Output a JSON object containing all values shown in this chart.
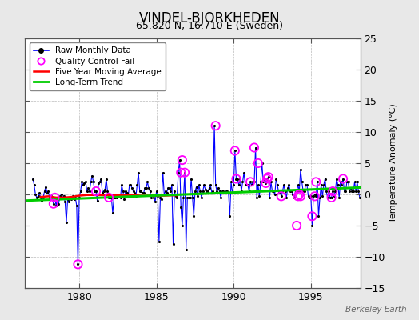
{
  "title": "VINDEL-BJORKHEDEN",
  "subtitle": "65.820 N, 16.710 E (Sweden)",
  "ylabel": "Temperature Anomaly (°C)",
  "credit": "Berkeley Earth",
  "xlim": [
    1976.5,
    1998.2
  ],
  "ylim": [
    -15,
    25
  ],
  "yticks": [
    -15,
    -10,
    -5,
    0,
    5,
    10,
    15,
    20,
    25
  ],
  "xticks": [
    1980,
    1985,
    1990,
    1995
  ],
  "bg_color": "#e8e8e8",
  "plot_bg_color": "#ffffff",
  "raw_line_color": "#0000ff",
  "raw_marker_color": "#000000",
  "qc_color": "#ff00ff",
  "moving_avg_color": "#ff0000",
  "trend_color": "#00cc00",
  "raw_data_x": [
    1977.0,
    1977.083,
    1977.167,
    1977.25,
    1977.333,
    1977.417,
    1977.5,
    1977.583,
    1977.667,
    1977.75,
    1977.833,
    1977.917,
    1978.0,
    1978.083,
    1978.167,
    1978.25,
    1978.333,
    1978.417,
    1978.5,
    1978.583,
    1978.667,
    1978.75,
    1978.833,
    1978.917,
    1979.0,
    1979.083,
    1979.167,
    1979.25,
    1979.333,
    1979.417,
    1979.5,
    1979.583,
    1979.667,
    1979.75,
    1979.833,
    1979.917,
    1980.0,
    1980.083,
    1980.167,
    1980.25,
    1980.333,
    1980.417,
    1980.5,
    1980.583,
    1980.667,
    1980.75,
    1980.833,
    1980.917,
    1981.0,
    1981.083,
    1981.167,
    1981.25,
    1981.333,
    1981.417,
    1981.5,
    1981.583,
    1981.667,
    1981.75,
    1981.833,
    1981.917,
    1982.0,
    1982.083,
    1982.167,
    1982.25,
    1982.333,
    1982.417,
    1982.5,
    1982.583,
    1982.667,
    1982.75,
    1982.833,
    1982.917,
    1983.0,
    1983.083,
    1983.167,
    1983.25,
    1983.333,
    1983.417,
    1983.5,
    1983.583,
    1983.667,
    1983.75,
    1983.833,
    1983.917,
    1984.0,
    1984.083,
    1984.167,
    1984.25,
    1984.333,
    1984.417,
    1984.5,
    1984.583,
    1984.667,
    1984.75,
    1984.833,
    1984.917,
    1985.0,
    1985.083,
    1985.167,
    1985.25,
    1985.333,
    1985.417,
    1985.5,
    1985.583,
    1985.667,
    1985.75,
    1985.833,
    1985.917,
    1986.0,
    1986.083,
    1986.167,
    1986.25,
    1986.333,
    1986.417,
    1986.5,
    1986.583,
    1986.667,
    1986.75,
    1986.833,
    1986.917,
    1987.0,
    1987.083,
    1987.167,
    1987.25,
    1987.333,
    1987.417,
    1987.5,
    1987.583,
    1987.667,
    1987.75,
    1987.833,
    1987.917,
    1988.0,
    1988.083,
    1988.167,
    1988.25,
    1988.333,
    1988.417,
    1988.5,
    1988.583,
    1988.667,
    1988.75,
    1988.833,
    1988.917,
    1989.0,
    1989.083,
    1989.167,
    1989.25,
    1989.333,
    1989.417,
    1989.5,
    1989.583,
    1989.667,
    1989.75,
    1989.833,
    1989.917,
    1990.0,
    1990.083,
    1990.167,
    1990.25,
    1990.333,
    1990.417,
    1990.5,
    1990.583,
    1990.667,
    1990.75,
    1990.833,
    1990.917,
    1991.0,
    1991.083,
    1991.167,
    1991.25,
    1991.333,
    1991.417,
    1991.5,
    1991.583,
    1991.667,
    1991.75,
    1991.833,
    1991.917,
    1992.0,
    1992.083,
    1992.167,
    1992.25,
    1992.333,
    1992.417,
    1992.5,
    1992.583,
    1992.667,
    1992.75,
    1992.833,
    1992.917,
    1993.0,
    1993.083,
    1993.167,
    1993.25,
    1993.333,
    1993.417,
    1993.5,
    1993.583,
    1993.667,
    1993.75,
    1993.833,
    1993.917,
    1994.0,
    1994.083,
    1994.167,
    1994.25,
    1994.333,
    1994.417,
    1994.5,
    1994.583,
    1994.667,
    1994.75,
    1994.833,
    1994.917,
    1995.0,
    1995.083,
    1995.167,
    1995.25,
    1995.333,
    1995.417,
    1995.5,
    1995.583,
    1995.667,
    1995.75,
    1995.833,
    1995.917,
    1996.0,
    1996.083,
    1996.167,
    1996.25,
    1996.333,
    1996.417,
    1996.5,
    1996.583,
    1996.667,
    1996.75,
    1996.833,
    1996.917,
    1997.0,
    1997.083,
    1997.167,
    1997.25,
    1997.333,
    1997.417,
    1997.5,
    1997.583,
    1997.667,
    1997.75,
    1997.833,
    1997.917,
    1998.0,
    1998.083,
    1998.167
  ],
  "raw_data_y": [
    2.5,
    1.5,
    0.0,
    -0.5,
    -0.3,
    0.2,
    -0.5,
    -1.0,
    -0.5,
    0.5,
    1.2,
    0.3,
    0.5,
    -0.8,
    -0.3,
    -0.5,
    -1.5,
    -0.5,
    -1.8,
    -0.8,
    -1.5,
    -0.3,
    0.0,
    -0.5,
    -0.2,
    -1.2,
    -4.5,
    -0.8,
    -1.2,
    -0.5,
    -0.8,
    -0.3,
    -0.8,
    -0.5,
    -1.8,
    -11.2,
    -0.5,
    0.5,
    2.0,
    1.5,
    1.8,
    2.0,
    0.5,
    1.0,
    0.5,
    2.0,
    3.0,
    2.0,
    0.5,
    0.5,
    -1.0,
    1.8,
    2.0,
    2.5,
    0.3,
    0.5,
    0.8,
    2.5,
    0.5,
    -0.5,
    -0.5,
    -0.5,
    -3.0,
    -0.5,
    -0.5,
    -0.5,
    0.0,
    -0.3,
    -0.5,
    1.5,
    0.5,
    -0.8,
    0.5,
    0.3,
    -0.3,
    1.5,
    1.5,
    1.0,
    0.5,
    0.2,
    -0.3,
    1.5,
    3.5,
    0.5,
    0.5,
    0.3,
    0.2,
    1.0,
    1.0,
    2.0,
    1.0,
    0.5,
    -0.5,
    0.0,
    -0.5,
    -1.2,
    0.5,
    -0.3,
    -7.5,
    -0.5,
    -0.8,
    3.5,
    0.0,
    0.5,
    0.3,
    1.0,
    1.0,
    0.5,
    1.5,
    -8.0,
    0.5,
    -0.3,
    -0.5,
    3.5,
    5.5,
    -2.0,
    -5.0,
    -0.5,
    3.5,
    -8.8,
    -0.5,
    -0.5,
    -0.5,
    2.5,
    -0.5,
    -3.5,
    0.5,
    1.2,
    -0.3,
    1.5,
    0.5,
    -0.5,
    0.5,
    1.5,
    0.8,
    0.5,
    0.5,
    1.0,
    1.5,
    0.3,
    0.5,
    11.0,
    1.5,
    0.5,
    1.0,
    0.5,
    -0.5,
    0.5,
    0.5,
    0.3,
    0.5,
    0.5,
    0.3,
    -3.5,
    2.0,
    0.3,
    1.5,
    7.0,
    2.5,
    2.5,
    1.5,
    2.5,
    0.5,
    2.0,
    3.5,
    1.5,
    1.5,
    1.5,
    0.5,
    2.0,
    1.5,
    2.0,
    2.0,
    7.5,
    -0.5,
    1.5,
    -0.3,
    2.0,
    5.0,
    2.0,
    2.5,
    1.8,
    2.5,
    2.8,
    -0.5,
    2.0,
    0.5,
    0.5,
    0.0,
    2.5,
    1.5,
    0.3,
    0.5,
    -0.3,
    0.5,
    1.5,
    0.5,
    -0.5,
    1.0,
    1.5,
    0.5,
    0.5,
    0.0,
    -0.5,
    0.5,
    0.5,
    1.5,
    0.5,
    4.0,
    2.0,
    0.5,
    0.5,
    1.5,
    1.5,
    -0.3,
    -0.5,
    -0.3,
    -5.0,
    -0.3,
    0.0,
    -0.3,
    2.0,
    -3.5,
    -0.5,
    1.5,
    -0.3,
    1.5,
    2.5,
    0.5,
    -0.5,
    0.5,
    -0.5,
    -0.5,
    0.5,
    -0.3,
    0.5,
    2.5,
    1.5,
    -0.5,
    2.0,
    1.5,
    2.5,
    0.5,
    0.5,
    2.0,
    2.0,
    0.5,
    1.0,
    0.5,
    0.5,
    2.0,
    0.5,
    2.0,
    0.5,
    -0.5
  ],
  "qc_fail_x": [
    1978.333,
    1978.417,
    1979.917,
    1981.083,
    1981.917,
    1986.583,
    1986.667,
    1986.833,
    1988.833,
    1990.083,
    1990.167,
    1991.083,
    1991.333,
    1991.583,
    1992.083,
    1992.167,
    1992.25,
    1993.083,
    1994.083,
    1994.167,
    1994.25,
    1994.333,
    1995.083,
    1995.25,
    1995.333,
    1996.333,
    1996.417,
    1997.083
  ],
  "qc_fail_y": [
    -1.5,
    -0.5,
    -11.2,
    0.5,
    -0.5,
    3.5,
    5.5,
    3.5,
    11.0,
    7.0,
    2.5,
    2.0,
    7.5,
    5.0,
    1.8,
    2.5,
    2.8,
    -0.3,
    -5.0,
    -0.3,
    0.0,
    -0.3,
    -3.5,
    -0.3,
    2.0,
    -0.5,
    0.5,
    2.5
  ],
  "moving_avg_x": [
    1977.5,
    1978.0,
    1978.5,
    1979.0,
    1979.5,
    1980.0,
    1980.5,
    1981.0,
    1981.5,
    1982.0,
    1982.5,
    1983.0,
    1983.5,
    1984.0,
    1984.5,
    1985.0,
    1985.5,
    1986.0,
    1986.3
  ],
  "moving_avg_y": [
    -0.4,
    -0.3,
    -0.5,
    -0.5,
    -0.4,
    -0.2,
    -0.1,
    -0.1,
    -0.1,
    -0.1,
    -0.1,
    -0.1,
    -0.1,
    -0.2,
    -0.2,
    -0.2,
    -0.2,
    -0.15,
    -0.15
  ],
  "trend_x": [
    1976.5,
    1998.2
  ],
  "trend_y": [
    -1.0,
    1.1
  ]
}
